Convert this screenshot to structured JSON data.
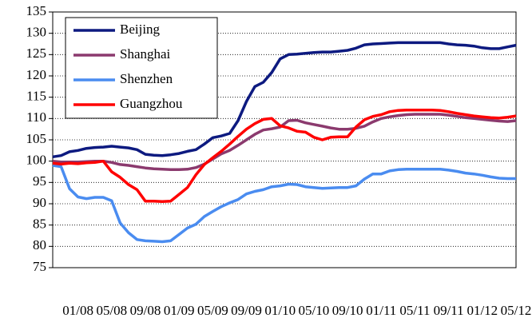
{
  "chart_data": {
    "type": "line",
    "categories": [
      null,
      null,
      null,
      "01/08",
      null,
      null,
      null,
      "05/08",
      null,
      null,
      null,
      "09/08",
      null,
      null,
      null,
      "01/09",
      null,
      null,
      null,
      "05/09",
      null,
      null,
      null,
      "09/09",
      null,
      null,
      null,
      "01/10",
      null,
      null,
      null,
      "05/10",
      null,
      null,
      null,
      "09/10",
      null,
      null,
      null,
      "01/11",
      null,
      null,
      null,
      "05/11",
      null,
      null,
      null,
      "09/11",
      null,
      null,
      null,
      "01/12",
      null,
      null,
      null,
      "05/12"
    ],
    "series": [
      {
        "name": "Beijing",
        "color": "#0d1a80",
        "values": [
          101,
          101.3,
          102.2,
          102.5,
          103,
          103.2,
          103.3,
          103.5,
          103.3,
          103.1,
          102.7,
          101.6,
          101.4,
          101.3,
          101.5,
          101.8,
          102.3,
          102.7,
          104,
          105.5,
          105.9,
          106.5,
          109.5,
          114,
          117.5,
          118.5,
          120.8,
          124,
          125,
          125.1,
          125.3,
          125.5,
          125.6,
          125.6,
          125.8,
          126,
          126.5,
          127.3,
          127.5,
          127.6,
          127.7,
          127.8,
          127.8,
          127.8,
          127.8,
          127.8,
          127.8,
          127.5,
          127.3,
          127.2,
          127,
          126.6,
          126.4,
          126.4,
          126.8,
          127.2
        ]
      },
      {
        "name": "Shanghai",
        "color": "#8b3a6e",
        "values": [
          100,
          99.8,
          99.8,
          99.8,
          99.9,
          100,
          100,
          99.7,
          99.2,
          99,
          98.7,
          98.4,
          98.2,
          98.1,
          98,
          98,
          98.1,
          98.5,
          99.3,
          100.5,
          101.7,
          102.5,
          103.7,
          105,
          106.3,
          107.3,
          107.6,
          108,
          109.5,
          109.6,
          109,
          108.6,
          108.2,
          107.8,
          107.5,
          107.5,
          107.7,
          108.2,
          109.2,
          110,
          110.4,
          110.7,
          110.9,
          111,
          111,
          111,
          111,
          110.8,
          110.5,
          110.2,
          110,
          109.8,
          109.6,
          109.4,
          109.3,
          109.5
        ]
      },
      {
        "name": "Shenzhen",
        "color": "#4a8cf0",
        "values": [
          99,
          98.7,
          93.5,
          91.6,
          91.2,
          91.5,
          91.5,
          90.7,
          85.5,
          83.2,
          81.6,
          81.3,
          81.2,
          81.1,
          81.3,
          82.8,
          84.3,
          85.2,
          87,
          88.2,
          89.3,
          90.2,
          91,
          92.3,
          92.9,
          93.3,
          94,
          94.2,
          94.6,
          94.5,
          94,
          93.8,
          93.6,
          93.7,
          93.8,
          93.8,
          94.2,
          95.8,
          97,
          97,
          97.7,
          98,
          98.1,
          98.1,
          98.1,
          98.1,
          98.1,
          97.9,
          97.6,
          97.2,
          97,
          96.7,
          96.3,
          96,
          95.9,
          95.9
        ]
      },
      {
        "name": "Guangzhou",
        "color": "#ff0000",
        "values": [
          99.5,
          99.3,
          99.5,
          99.4,
          99.6,
          99.7,
          100,
          97.5,
          96.2,
          94.5,
          93.3,
          90.6,
          90.6,
          90.5,
          90.6,
          92.2,
          93.8,
          96.8,
          99.2,
          100.8,
          102.3,
          104,
          105.8,
          107.5,
          108.8,
          109.8,
          110,
          108.3,
          107.8,
          107,
          106.8,
          105.6,
          105,
          105.6,
          105.7,
          105.7,
          108,
          109.7,
          110.5,
          110.9,
          111.6,
          111.9,
          112,
          112,
          112,
          112,
          111.9,
          111.6,
          111.2,
          110.9,
          110.6,
          110.4,
          110.2,
          110.1,
          110.3,
          110.6
        ]
      }
    ],
    "ylim": [
      75,
      135
    ],
    "yticks": [
      75,
      80,
      85,
      90,
      95,
      100,
      105,
      110,
      115,
      120,
      125,
      130,
      135
    ],
    "grid": true,
    "legend": "upper left"
  }
}
